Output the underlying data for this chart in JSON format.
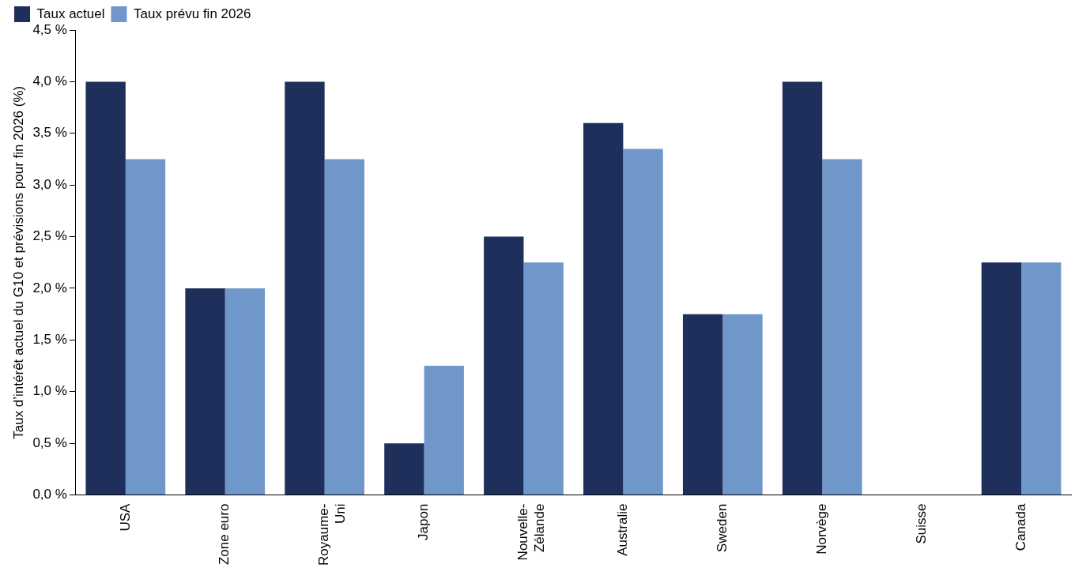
{
  "chart_data": {
    "type": "bar",
    "ylabel": "Taux d’intérêt actuel du G10 et prévisions pour fin 2026 (%)",
    "categories": [
      "USA",
      "Zone euro",
      "Royaume-Uni",
      "Japon",
      "Nouvelle-Zélande",
      "Australie",
      "Sweden",
      "Norvège",
      "Suisse",
      "Canada"
    ],
    "series": [
      {
        "name": "Taux actuel",
        "color": "#1f2f5c",
        "values": [
          4.0,
          2.0,
          4.0,
          0.5,
          2.5,
          3.6,
          1.75,
          4.0,
          0,
          2.25
        ]
      },
      {
        "name": "Taux prévu fin 2026",
        "color": "#7097c9",
        "values": [
          3.25,
          2.0,
          3.25,
          1.25,
          2.25,
          3.35,
          1.75,
          3.25,
          0,
          2.25
        ]
      }
    ],
    "ylim": [
      0,
      4.5
    ],
    "yticks": [
      {
        "value": 0,
        "label": "0,0 %"
      },
      {
        "value": 0.5,
        "label": "0,5 %"
      },
      {
        "value": 1,
        "label": "1,0 %"
      },
      {
        "value": 1.5,
        "label": "1,5 %"
      },
      {
        "value": 2,
        "label": "2,0 %"
      },
      {
        "value": 2.5,
        "label": "2,5 %"
      },
      {
        "value": 3,
        "label": "3,0 %"
      },
      {
        "value": 3.5,
        "label": "3,5 %"
      },
      {
        "value": 4,
        "label": "4,0 %"
      },
      {
        "value": 4.5,
        "label": "4,5 %"
      }
    ],
    "grid": false,
    "legend": "top left"
  }
}
